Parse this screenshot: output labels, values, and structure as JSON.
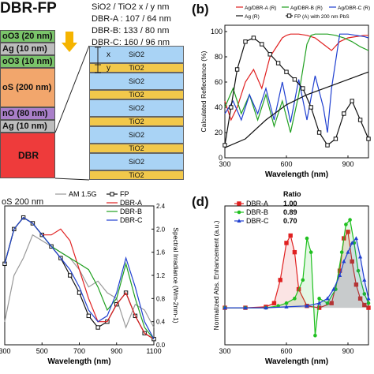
{
  "panel_a": {
    "title": "DBR-FP",
    "legend_lines": [
      "SiO2 / TiO2 x / y nm",
      "DBR-A : 107 / 64 nm",
      "DBR-B: 133 / 80 nm",
      "DBR-C: 160 / 96 nm"
    ],
    "stack": [
      {
        "label": "oO3 (20 nm)",
        "color": "#7ac46a"
      },
      {
        "label": "Ag (10 nm)",
        "color": "#bdbdbd"
      },
      {
        "label": "oO3 (10 nm)",
        "color": "#7ac46a"
      },
      {
        "label": "oS (200 nm)",
        "color": "#f2a66c"
      },
      {
        "label": "nO (80 nm)",
        "color": "#a97fc9"
      },
      {
        "label": "Ag (10 nm)",
        "color": "#bdbdbd"
      },
      {
        "label": "DBR",
        "color": "#ee3b3b"
      }
    ],
    "dbr_layers": [
      "SiO2",
      "TiO2",
      "SiO2",
      "TiO2",
      "SiO2",
      "TiO2",
      "SiO2",
      "TiO2",
      "SiO2",
      "TiO2"
    ],
    "markers": {
      "x": "x",
      "y": "y"
    },
    "colors": {
      "sio2": "#a9d3f5",
      "tio2": "#f2c84b",
      "arrow": "#f5b400"
    }
  },
  "panel_b": {
    "label": "(b)"
  },
  "panel_c": {
    "label": "oS 200 nm"
  },
  "panel_d": {
    "label": "(d)",
    "ratio_title": "Ratio"
  },
  "chart_data": [
    {
      "type": "line",
      "panel": "b",
      "xlabel": "Wavelength (nm)",
      "ylabel": "Calculated Reflectance (%)",
      "xlim": [
        300,
        1000
      ],
      "ylim": [
        0,
        105
      ],
      "xticks": [
        300,
        600,
        900
      ],
      "yticks": [
        0,
        20,
        40,
        60,
        80,
        100
      ],
      "legend": [
        "Ag/DBR-A (R)",
        "Ag/DBR-B (R)",
        "Ag/DBR-C (R)",
        "Ag (R)",
        "FP (A) with 200 nm PbS"
      ],
      "series": [
        {
          "name": "Ag/DBR-A (R)",
          "color": "#e02020",
          "x": [
            300,
            330,
            360,
            400,
            440,
            480,
            520,
            560,
            580,
            600,
            620,
            660,
            700,
            740,
            780,
            820,
            860,
            900,
            940,
            980,
            1000
          ],
          "y": [
            45,
            30,
            40,
            60,
            70,
            55,
            80,
            90,
            95,
            97,
            98,
            98,
            97,
            95,
            90,
            85,
            92,
            95,
            96,
            97,
            97
          ]
        },
        {
          "name": "Ag/DBR-B (R)",
          "color": "#20a020",
          "x": [
            300,
            340,
            380,
            420,
            460,
            500,
            540,
            580,
            620,
            660,
            700,
            720,
            740,
            760,
            800,
            840,
            880,
            920,
            960,
            1000
          ],
          "y": [
            40,
            55,
            35,
            50,
            30,
            50,
            25,
            45,
            20,
            50,
            90,
            97,
            98,
            98,
            98,
            97,
            95,
            92,
            88,
            85
          ]
        },
        {
          "name": "Ag/DBR-C (R)",
          "color": "#2040d0",
          "x": [
            300,
            340,
            380,
            420,
            460,
            500,
            540,
            580,
            620,
            660,
            700,
            740,
            780,
            800,
            820,
            860,
            900,
            940,
            980,
            1000
          ],
          "y": [
            35,
            45,
            30,
            50,
            35,
            55,
            30,
            60,
            28,
            62,
            30,
            65,
            40,
            20,
            55,
            98,
            98,
            97,
            96,
            95
          ]
        },
        {
          "name": "Ag (R)",
          "color": "#111111",
          "x": [
            300,
            400,
            500,
            600,
            700,
            800,
            900,
            1000
          ],
          "y": [
            8,
            15,
            30,
            42,
            50,
            56,
            62,
            68
          ]
        },
        {
          "name": "FP (A) with 200 nm PbS",
          "color": "#111111",
          "marker": "square",
          "x": [
            300,
            330,
            360,
            400,
            440,
            480,
            520,
            560,
            600,
            640,
            680,
            720,
            760,
            800,
            840,
            880,
            920,
            960,
            1000
          ],
          "y": [
            10,
            40,
            70,
            92,
            95,
            90,
            82,
            75,
            68,
            62,
            55,
            40,
            20,
            10,
            15,
            35,
            45,
            30,
            15
          ]
        }
      ]
    },
    {
      "type": "line",
      "panel": "c",
      "xlabel": "Wavelength (nm)",
      "ylabel": "Spectral Irradiance (Wm-2nm-1)",
      "xlim": [
        300,
        1100
      ],
      "ylim_right": [
        0,
        2.4
      ],
      "xticks": [
        300,
        500,
        700,
        900,
        1100
      ],
      "yticks_right": [
        0.0,
        0.4,
        0.8,
        1.2,
        1.6,
        2.0,
        2.4
      ],
      "legend": [
        "AM 1.5G",
        "FP",
        "DBR-A",
        "DBR-B",
        "DBR-C"
      ],
      "series": [
        {
          "name": "AM 1.5G",
          "color": "#999999",
          "x": [
            300,
            350,
            400,
            450,
            500,
            550,
            600,
            650,
            700,
            750,
            800,
            850,
            900,
            950,
            1000,
            1050,
            1100
          ],
          "y": [
            0.4,
            1.2,
            1.5,
            1.9,
            1.8,
            1.7,
            1.6,
            1.5,
            1.3,
            1.0,
            1.1,
            0.9,
            0.8,
            0.3,
            0.7,
            0.6,
            0.3
          ]
        },
        {
          "name": "FP",
          "color": "#111111",
          "marker": "square",
          "x": [
            300,
            350,
            400,
            450,
            500,
            550,
            600,
            650,
            700,
            750,
            800,
            850,
            900,
            950,
            1000,
            1050,
            1100
          ],
          "y": [
            1.4,
            2.0,
            2.2,
            2.1,
            1.9,
            1.7,
            1.5,
            1.2,
            0.9,
            0.5,
            0.3,
            0.4,
            0.7,
            0.9,
            0.5,
            0.2,
            0.1
          ]
        },
        {
          "name": "DBR-A",
          "color": "#e02020",
          "x": [
            300,
            350,
            400,
            450,
            500,
            550,
            600,
            650,
            700,
            750,
            800,
            850,
            900,
            950,
            1000,
            1050,
            1100
          ],
          "y": [
            1.4,
            2.0,
            2.2,
            2.1,
            1.9,
            1.9,
            2.0,
            1.8,
            1.3,
            0.8,
            0.4,
            0.4,
            0.7,
            0.9,
            0.5,
            0.2,
            0.1
          ]
        },
        {
          "name": "DBR-B",
          "color": "#20a020",
          "x": [
            300,
            350,
            400,
            450,
            500,
            550,
            600,
            650,
            700,
            750,
            800,
            850,
            900,
            950,
            1000,
            1050,
            1100
          ],
          "y": [
            1.4,
            2.0,
            2.2,
            2.1,
            1.9,
            1.7,
            1.6,
            1.5,
            1.4,
            1.3,
            1.0,
            0.6,
            0.8,
            1.4,
            0.8,
            0.3,
            0.1
          ]
        },
        {
          "name": "DBR-C",
          "color": "#2040d0",
          "x": [
            300,
            350,
            400,
            450,
            500,
            550,
            600,
            650,
            700,
            750,
            800,
            850,
            900,
            950,
            1000,
            1050,
            1100
          ],
          "y": [
            1.4,
            2.0,
            2.2,
            2.1,
            1.9,
            1.7,
            1.5,
            1.3,
            1.0,
            0.6,
            0.4,
            0.5,
            0.9,
            1.5,
            1.0,
            0.4,
            0.1
          ]
        }
      ]
    },
    {
      "type": "line",
      "panel": "d",
      "xlabel": "Wavelength (nm)",
      "ylabel": "Normalized Abs. Enhancement (a.u.)",
      "xlim": [
        300,
        1000
      ],
      "ylim": [
        -0.4,
        1.1
      ],
      "xticks": [
        300,
        600,
        900
      ],
      "legend": [
        {
          "name": "DBR-A",
          "ratio": "1.00"
        },
        {
          "name": "DBR-B",
          "ratio": "0.89"
        },
        {
          "name": "DBR-C",
          "ratio": "0.70"
        }
      ],
      "series": [
        {
          "name": "DBR-A",
          "color": "#e02020",
          "marker": "square",
          "x": [
            300,
            400,
            500,
            540,
            570,
            600,
            620,
            640,
            660,
            700,
            760,
            820,
            860,
            880,
            900,
            920,
            940,
            960,
            980,
            1000
          ],
          "y": [
            0,
            0,
            0.01,
            0.05,
            0.3,
            0.7,
            0.78,
            0.6,
            0.2,
            0.02,
            0,
            0.05,
            0.4,
            0.75,
            0.82,
            0.5,
            0.25,
            0.1,
            0.03,
            0
          ]
        },
        {
          "name": "DBR-B",
          "color": "#20c020",
          "marker": "circle",
          "x": [
            300,
            400,
            500,
            560,
            600,
            640,
            680,
            700,
            720,
            740,
            760,
            800,
            840,
            870,
            890,
            910,
            930,
            950,
            980,
            1000
          ],
          "y": [
            0,
            0,
            0,
            0.02,
            0.05,
            0.1,
            0.3,
            0.75,
            0.6,
            -0.3,
            0.1,
            0.05,
            0.2,
            0.6,
            0.9,
            0.95,
            0.7,
            0.4,
            0.15,
            0.05
          ]
        },
        {
          "name": "DBR-C",
          "color": "#2040d0",
          "marker": "triangle",
          "x": [
            300,
            400,
            500,
            600,
            700,
            760,
            800,
            830,
            860,
            880,
            900,
            920,
            940,
            960,
            980,
            1000
          ],
          "y": [
            0,
            0,
            0,
            0.01,
            0.02,
            0.05,
            0.1,
            0.2,
            0.35,
            0.5,
            0.6,
            0.7,
            0.75,
            0.55,
            0.3,
            0.1
          ]
        }
      ]
    }
  ]
}
